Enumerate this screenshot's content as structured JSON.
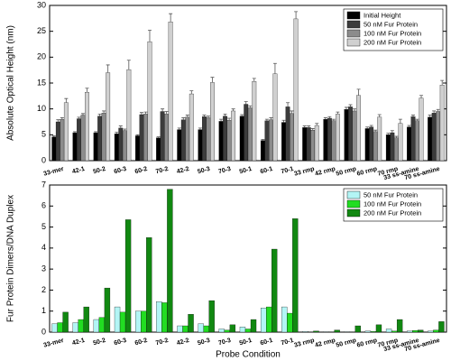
{
  "chart_data": [
    {
      "type": "bar",
      "y_label": "Absolute Optical Height (nm)",
      "categories": [
        "33-mer",
        "42-1",
        "50-2",
        "60-3",
        "60-2",
        "70-2",
        "42-2",
        "50-3",
        "70-3",
        "50-1",
        "60-1",
        "70-1",
        "33 rmp",
        "42 rmp",
        "50 rmp",
        "60 rmp",
        "70 rmp",
        "33 ss-amine",
        "70 ss-amine"
      ],
      "series": [
        {
          "name": "Initial Height",
          "color": "#000000",
          "values": [
            4.6,
            5.4,
            5.4,
            5.2,
            4.8,
            4.4,
            6.0,
            6.0,
            7.6,
            8.6,
            3.9,
            7.4,
            6.4,
            8.0,
            9.9,
            6.2,
            5.0,
            6.5,
            8.4
          ],
          "errors": [
            0.2,
            0.2,
            0.2,
            0.3,
            0.2,
            0.2,
            0.3,
            0.3,
            0.4,
            0.3,
            0.2,
            0.4,
            0.3,
            0.3,
            0.4,
            0.3,
            0.3,
            0.3,
            0.4
          ]
        },
        {
          "name": "50 nM Fur Protein",
          "color": "#3c3c3c",
          "values": [
            7.5,
            8.1,
            8.6,
            6.3,
            8.9,
            9.5,
            7.9,
            8.5,
            8.6,
            10.9,
            7.7,
            10.4,
            6.4,
            8.2,
            10.4,
            6.5,
            5.4,
            8.5,
            9.2
          ],
          "errors": [
            0.4,
            0.3,
            0.4,
            0.4,
            0.4,
            0.5,
            0.4,
            0.3,
            0.4,
            0.5,
            0.3,
            0.8,
            0.3,
            0.3,
            0.4,
            0.3,
            0.4,
            0.3,
            0.4
          ]
        },
        {
          "name": "100 nM Fur Protein",
          "color": "#8c8c8c",
          "values": [
            8.0,
            8.8,
            9.2,
            5.8,
            9.0,
            9.0,
            8.4,
            8.3,
            7.8,
            10.2,
            7.9,
            9.1,
            5.9,
            7.7,
            9.6,
            5.6,
            4.4,
            7.7,
            9.5
          ],
          "errors": [
            0.3,
            0.3,
            0.4,
            0.3,
            0.4,
            0.5,
            0.4,
            0.3,
            0.4,
            0.4,
            0.4,
            0.5,
            0.3,
            0.3,
            0.4,
            0.3,
            0.3,
            0.3,
            0.4
          ]
        },
        {
          "name": "200 nM Fur Protein",
          "color": "#d0d0d0",
          "values": [
            11.2,
            13.2,
            17.0,
            17.6,
            23.0,
            26.8,
            12.9,
            15.1,
            9.6,
            15.3,
            16.8,
            27.4,
            6.8,
            9.0,
            12.6,
            8.4,
            7.2,
            12.1,
            14.6
          ],
          "errors": [
            0.8,
            0.8,
            1.5,
            1.8,
            2.2,
            1.6,
            0.6,
            1.0,
            0.4,
            0.6,
            2.0,
            1.4,
            0.4,
            0.4,
            1.2,
            0.5,
            0.8,
            0.5,
            0.9
          ]
        }
      ],
      "ylim": [
        0,
        30
      ],
      "yticks": [
        0,
        5,
        10,
        15,
        20,
        25,
        30
      ],
      "legend": "upper right"
    },
    {
      "type": "bar",
      "x_label": "Probe Condition",
      "y_label": "Fur Protein Dimers/DNA Duplex",
      "categories": [
        "33-mer",
        "42-1",
        "50-2",
        "60-3",
        "60-2",
        "70-2",
        "42-2",
        "50-3",
        "70-3",
        "50-1",
        "60-1",
        "70-1",
        "33 rmp",
        "42 rmp",
        "50 rmp",
        "60 rmp",
        "70 rmp",
        "33 ss-amine",
        "70 ss-amine"
      ],
      "series": [
        {
          "name": "50 nM Fur Protein",
          "color": "#b3f5f5",
          "values": [
            0.4,
            0.45,
            0.6,
            1.2,
            1.0,
            1.45,
            0.3,
            0.4,
            0.15,
            0.25,
            1.15,
            1.2,
            0.03,
            0.02,
            0.02,
            0.05,
            0.15,
            0.05,
            0.05
          ]
        },
        {
          "name": "100 nM Fur Protein",
          "color": "#22dd22",
          "values": [
            0.45,
            0.6,
            0.7,
            0.95,
            1.0,
            1.4,
            0.3,
            0.3,
            0.1,
            0.15,
            1.2,
            0.9,
            0.01,
            0.01,
            0.01,
            0.03,
            0.05,
            0.08,
            0.1
          ]
        },
        {
          "name": "200 nM Fur Protein",
          "color": "#118811",
          "values": [
            0.95,
            1.2,
            2.1,
            5.35,
            4.5,
            6.8,
            0.85,
            1.5,
            0.35,
            0.6,
            3.95,
            5.4,
            0.05,
            0.1,
            0.3,
            0.35,
            0.6,
            0.1,
            0.5
          ]
        }
      ],
      "ylim": [
        0,
        7
      ],
      "yticks": [
        0,
        1,
        2,
        3,
        4,
        5,
        6,
        7
      ],
      "legend": "upper right"
    }
  ]
}
